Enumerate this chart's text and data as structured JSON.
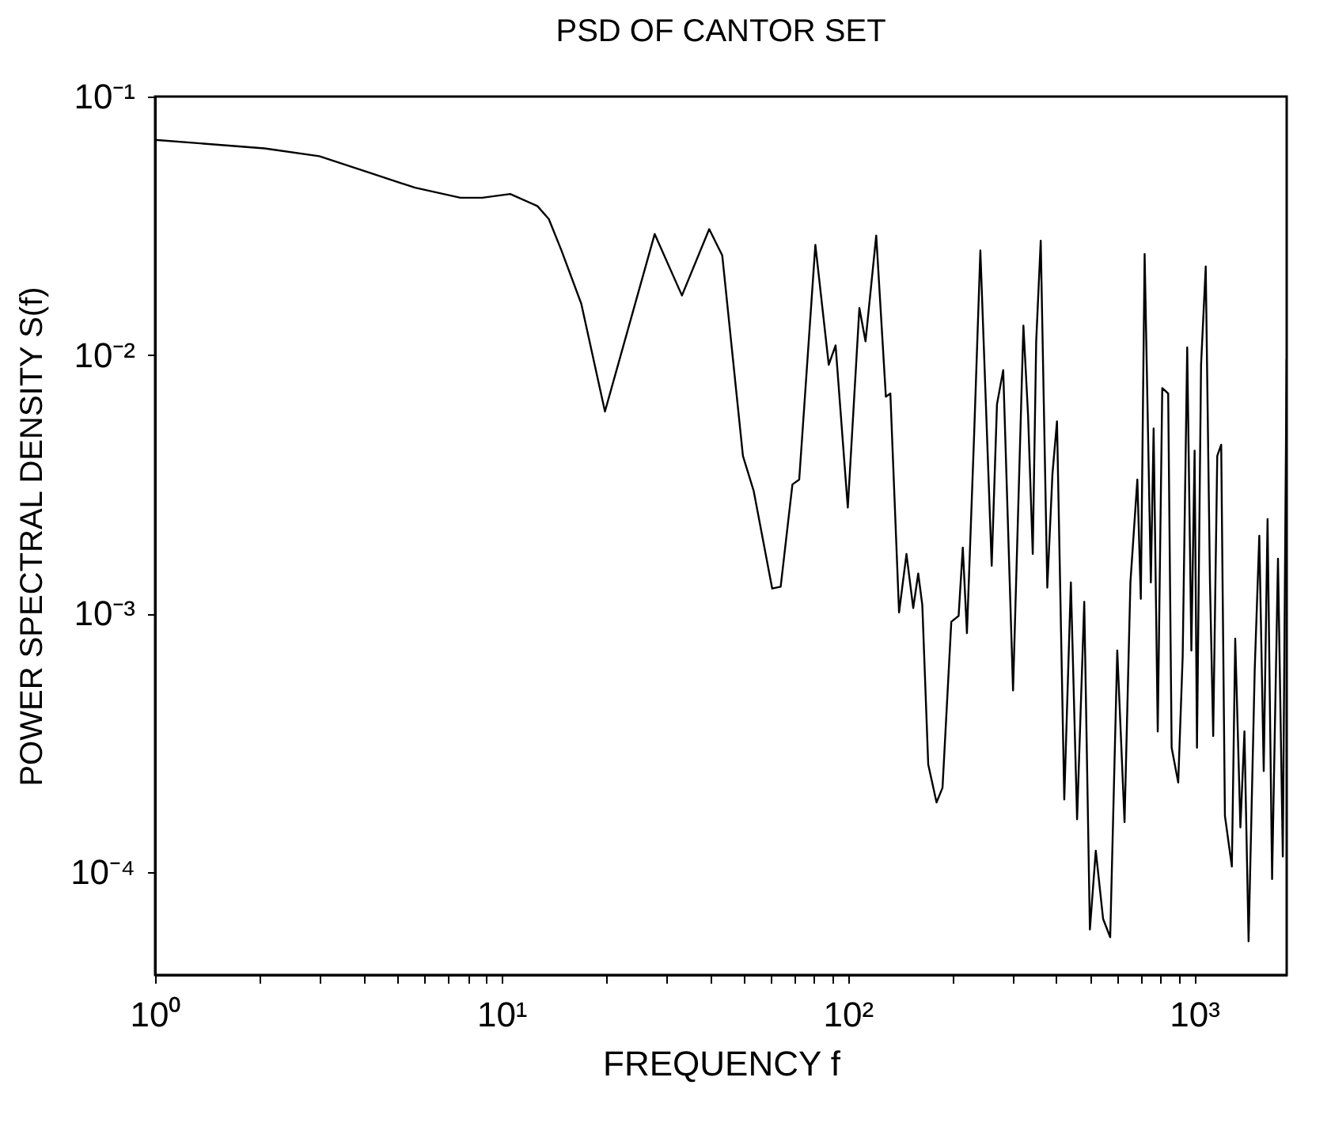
{
  "chart_data": {
    "type": "line",
    "title": "PSD OF CANTOR SET",
    "xlabel": "FREQUENCY f",
    "ylabel": "POWER SPECTRAL DENSITY S(f)",
    "log": "xy",
    "grid": false,
    "marker": "none",
    "line_style": "solid",
    "xlim": [
      1,
      1850
    ],
    "ylim": [
      4e-05,
      0.1
    ],
    "xticks": [
      {
        "value": 1,
        "label": "10⁰"
      },
      {
        "value": 2,
        "label": null
      },
      {
        "value": 3,
        "label": null
      },
      {
        "value": 4,
        "label": null
      },
      {
        "value": 5,
        "label": null
      },
      {
        "value": 6,
        "label": null
      },
      {
        "value": 7,
        "label": null
      },
      {
        "value": 8,
        "label": null
      },
      {
        "value": 9,
        "label": null
      },
      {
        "value": 10,
        "label": "10¹"
      },
      {
        "value": 20,
        "label": null
      },
      {
        "value": 30,
        "label": null
      },
      {
        "value": 40,
        "label": null
      },
      {
        "value": 50,
        "label": null
      },
      {
        "value": 60,
        "label": null
      },
      {
        "value": 70,
        "label": null
      },
      {
        "value": 80,
        "label": null
      },
      {
        "value": 90,
        "label": null
      },
      {
        "value": 100,
        "label": "10²"
      },
      {
        "value": 200,
        "label": null
      },
      {
        "value": 300,
        "label": null
      },
      {
        "value": 400,
        "label": null
      },
      {
        "value": 500,
        "label": null
      },
      {
        "value": 600,
        "label": null
      },
      {
        "value": 700,
        "label": null
      },
      {
        "value": 800,
        "label": null
      },
      {
        "value": 900,
        "label": null
      },
      {
        "value": 1000,
        "label": "10³"
      }
    ],
    "yticks": [
      {
        "value": 0.1,
        "label": "10⁻¹"
      },
      {
        "value": 0.01,
        "label": "10⁻²"
      },
      {
        "value": 0.001,
        "label": "10⁻³"
      },
      {
        "value": 0.0001,
        "label": "10⁻⁴"
      }
    ],
    "x": [
      1,
      2.07,
      2.98,
      4.17,
      5.63,
      7.61,
      8.8,
      10.6,
      12.7,
      13.7,
      14.9,
      17,
      19.9,
      27.7,
      33.2,
      39.8,
      43.4,
      49.8,
      53.5,
      60.5,
      64,
      69.2,
      72.4,
      80.6,
      88.1,
      92.2,
      100,
      108,
      112.5,
      120.8,
      128.8,
      132.7,
      140.6,
      147.7,
      154.5,
      159.7,
      164.1,
      170.7,
      180.4,
      187.7,
      199,
      208.9,
      214.8,
      220.8,
      231.7,
      241.4,
      249.5,
      260.3,
      269.6,
      281,
      300,
      321.4,
      331.6,
      342,
      349.9,
      360.6,
      376.7,
      389.9,
      401.8,
      421.7,
      440.6,
      459.2,
      481.6,
      500,
      520,
      545.8,
      572.3,
      599.8,
      629.5,
      654.6,
      685.5,
      701.5,
      719.5,
      749.9,
      763.8,
      785,
      809,
      841.4,
      861,
      899.5,
      926.5,
      954.9,
      981.7,
      1003,
      1019,
      1047,
      1080,
      1111,
      1135,
      1166,
      1197,
      1227,
      1285,
      1314,
      1360,
      1397,
      1436,
      1496,
      1542,
      1588,
      1629,
      1679,
      1746,
      1803,
      1849
    ],
    "series": [
      {
        "color": "#000000",
        "values": [
          0.068,
          0.063,
          0.0588,
          0.0507,
          0.0444,
          0.0406,
          0.0406,
          0.042,
          0.0377,
          0.0336,
          0.0254,
          0.0158,
          0.00605,
          0.0294,
          0.017,
          0.0307,
          0.0243,
          0.00407,
          0.00298,
          0.00125,
          0.00127,
          0.00316,
          0.0033,
          0.0267,
          0.00917,
          0.0109,
          0.00257,
          0.0152,
          0.0113,
          0.029,
          0.0069,
          0.0071,
          0.00101,
          0.0017,
          0.00105,
          0.00143,
          0.00108,
          0.000261,
          0.000186,
          0.000212,
          0.00093,
          0.00098,
          0.0018,
          0.00084,
          0.005,
          0.0254,
          0.00745,
          0.00153,
          0.00645,
          0.00875,
          0.000504,
          0.013,
          0.0058,
          0.0017,
          0.0113,
          0.0277,
          0.00126,
          0.00348,
          0.00554,
          0.000191,
          0.00132,
          0.00016,
          0.00111,
          6e-05,
          0.000121,
          6.6e-05,
          5.6e-05,
          0.00072,
          0.000156,
          0.00132,
          0.0033,
          0.00114,
          0.0246,
          0.00132,
          0.0052,
          0.00035,
          0.00745,
          0.0071,
          0.000303,
          0.000222,
          0.00068,
          0.0107,
          0.00072,
          0.00427,
          0.000303,
          0.00917,
          0.022,
          0.00132,
          0.000336,
          0.00407,
          0.0045,
          0.000165,
          0.000105,
          0.0008,
          0.000149,
          0.00035,
          5.4e-05,
          0.00061,
          0.002,
          0.000246,
          0.00232,
          9.4e-05,
          0.00163,
          0.000115,
          0.00964
        ]
      }
    ]
  }
}
